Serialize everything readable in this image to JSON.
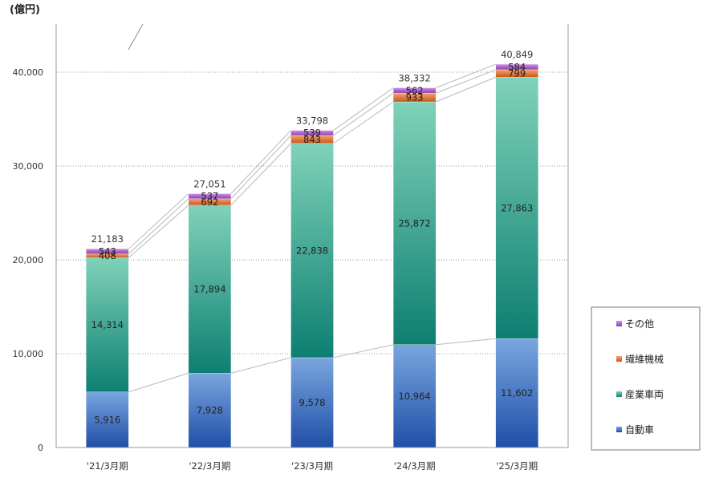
{
  "chart_data": {
    "type": "bar",
    "stacked": true,
    "unit_label": "(億円)",
    "categories": [
      "'21/3月期",
      "'22/3月期",
      "'23/3月期",
      "'24/3月期",
      "'25/3月期"
    ],
    "series": [
      {
        "name": "自動車",
        "values": [
          5916,
          7928,
          9578,
          10964,
          11602
        ],
        "color": "#3a6fc0"
      },
      {
        "name": "産業車両",
        "values": [
          14314,
          17894,
          22838,
          25872,
          27863
        ],
        "color": "#2a9a86"
      },
      {
        "name": "繊維機械",
        "values": [
          408,
          692,
          843,
          933,
          799
        ],
        "color": "#e07a3a"
      },
      {
        "name": "その他",
        "values": [
          543,
          537,
          539,
          562,
          584
        ],
        "color": "#a85fc8"
      }
    ],
    "totals": [
      21183,
      27051,
      33798,
      38332,
      40849
    ],
    "y_ticks": [
      "0",
      "10,000",
      "20,000",
      "30,000",
      "40,000"
    ],
    "ylim": [
      0,
      40000
    ],
    "grid": true,
    "legend_position": "right",
    "legend_order": [
      "その他",
      "繊維機械",
      "産業車両",
      "自動車"
    ]
  }
}
